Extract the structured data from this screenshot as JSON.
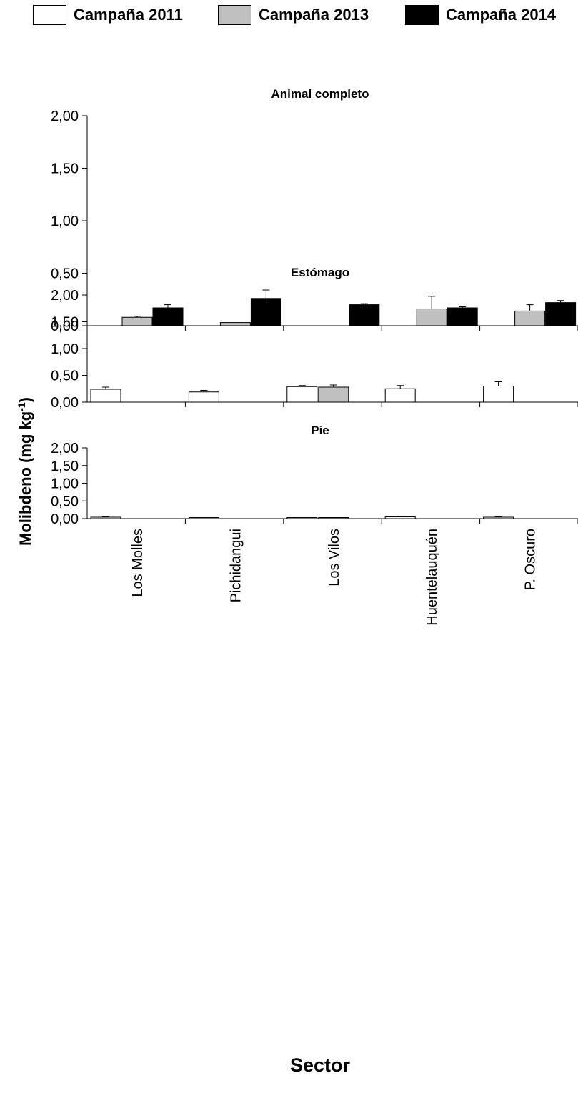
{
  "legend": [
    {
      "name": "Campaña 2011",
      "color": "#ffffff"
    },
    {
      "name": "Campaña 2013",
      "color": "#c0c0c0"
    },
    {
      "name": "Campaña 2014",
      "color": "#000000"
    }
  ],
  "chart_data": {
    "type": "bar",
    "xlabel": "Sector",
    "ylabel_main": "Molibdeno (mg kg",
    "ylabel_sup": "-1",
    "ylabel_end": ")",
    "ylim": [
      0,
      2
    ],
    "yticks": [
      "0,00",
      "0,50",
      "1,00",
      "1,50",
      "2,00"
    ],
    "categories": [
      "Los Molles",
      "Pichidangui",
      "Los Vilos",
      "Huentelauquén",
      "P. Oscuro"
    ],
    "grid": false,
    "legend_position": "top",
    "panels": [
      {
        "title": "Animal completo",
        "series": [
          {
            "name": "Campaña 2011",
            "values": [
              null,
              null,
              null,
              null,
              null
            ],
            "errors": [
              0,
              0,
              0,
              0,
              0
            ]
          },
          {
            "name": "Campaña 2013",
            "values": [
              0.08,
              0.03,
              null,
              0.16,
              0.14
            ],
            "errors": [
              0.01,
              0,
              0,
              0.12,
              0.06
            ]
          },
          {
            "name": "Campaña 2014",
            "values": [
              0.17,
              0.26,
              0.2,
              0.17,
              0.22
            ],
            "errors": [
              0.03,
              0.08,
              0.01,
              0.01,
              0.02
            ]
          }
        ]
      },
      {
        "title": "Estómago",
        "series": [
          {
            "name": "Campaña 2011",
            "values": [
              0.24,
              0.19,
              0.29,
              0.25,
              0.3
            ],
            "errors": [
              0.04,
              0.03,
              0.02,
              0.06,
              0.08
            ]
          },
          {
            "name": "Campaña 2013",
            "values": [
              null,
              null,
              0.28,
              null,
              null
            ],
            "errors": [
              0,
              0,
              0.04,
              0,
              0
            ]
          },
          {
            "name": "Campaña 2014",
            "values": [
              null,
              null,
              null,
              null,
              null
            ],
            "errors": [
              0,
              0,
              0,
              0,
              0
            ]
          }
        ]
      },
      {
        "title": "Pie",
        "series": [
          {
            "name": "Campaña 2011",
            "values": [
              0.04,
              0.03,
              0.03,
              0.05,
              0.04
            ],
            "errors": [
              0.01,
              0,
              0,
              0.01,
              0.01
            ]
          },
          {
            "name": "Campaña 2013",
            "values": [
              null,
              null,
              0.03,
              null,
              null
            ],
            "errors": [
              0,
              0,
              0,
              0,
              0
            ]
          },
          {
            "name": "Campaña 2014",
            "values": [
              null,
              null,
              null,
              null,
              null
            ],
            "errors": [
              0,
              0,
              0,
              0,
              0
            ]
          }
        ]
      }
    ]
  }
}
